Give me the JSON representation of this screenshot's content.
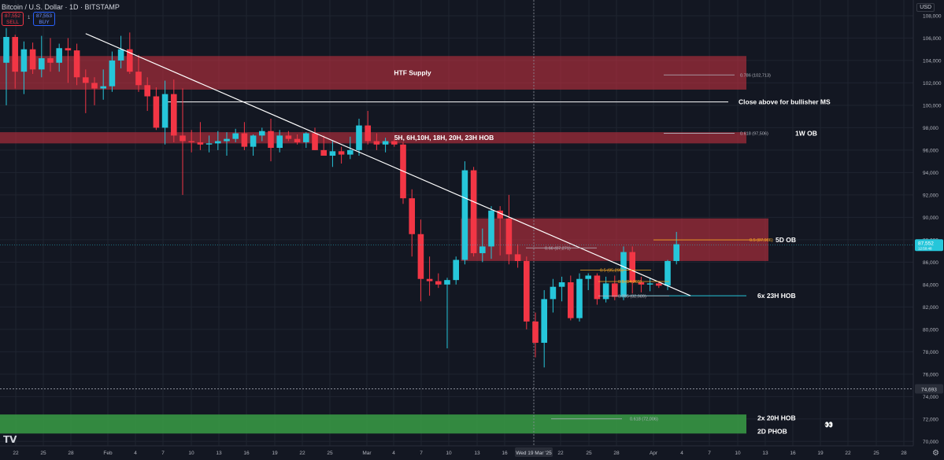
{
  "header": {
    "symbol_title": "Bitcoin / U.S. Dollar · 1D · BITSTAMP",
    "sell_price": "87,552",
    "sell_label": "SELL",
    "buy_price": "87,553",
    "buy_label": "BUY",
    "spread": "1",
    "currency": "USD"
  },
  "crosshair": {
    "date_label": "Wed 19 Mar '25",
    "price_label": "74,693"
  },
  "current_price": {
    "value": 87552,
    "label": "87,552",
    "sub": "12:50:48"
  },
  "icons": {
    "logo": "tradingview-logo-icon",
    "settings": "gear-icon",
    "eyes": "eyes-emoji-icon"
  },
  "colors": {
    "background": "#131722",
    "up": "#26c6da",
    "down": "#f23645",
    "supply_zone": "#c2303f",
    "demand_zone": "#3a9d45",
    "fib_line": "#f5a623",
    "grid": "#1f2430"
  },
  "chart_data": {
    "type": "candlestick",
    "symbol": "Bitcoin / U.S. Dollar",
    "timeframe": "1D",
    "exchange": "BITSTAMP",
    "x_ticks": [
      "22",
      "25",
      "28",
      "Feb",
      "4",
      "7",
      "10",
      "13",
      "16",
      "19",
      "22",
      "25",
      "Mar",
      "4",
      "7",
      "10",
      "13",
      "16",
      "Wed 19 Mar '25",
      "22",
      "25",
      "28",
      "Apr",
      "4",
      "7",
      "10",
      "13",
      "16",
      "19",
      "22",
      "25",
      "28"
    ],
    "y_ticks": [
      "108,000",
      "106,000",
      "104,000",
      "102,000",
      "100,000",
      "98,000",
      "96,000",
      "94,000",
      "92,000",
      "90,000",
      "88,000",
      "86,000",
      "84,000",
      "82,000",
      "80,000",
      "78,000",
      "76,000",
      "74,000",
      "72,000",
      "70,000"
    ],
    "ylim": [
      69600,
      109400
    ],
    "candles": [
      {
        "o": 103800,
        "h": 106900,
        "l": 100000,
        "c": 106100
      },
      {
        "o": 106100,
        "h": 106300,
        "l": 101500,
        "c": 103000
      },
      {
        "o": 103000,
        "h": 105700,
        "l": 101000,
        "c": 105000
      },
      {
        "o": 105000,
        "h": 105600,
        "l": 102800,
        "c": 103200
      },
      {
        "o": 103200,
        "h": 106200,
        "l": 102500,
        "c": 104200
      },
      {
        "o": 104200,
        "h": 106000,
        "l": 103000,
        "c": 103800
      },
      {
        "o": 103800,
        "h": 105500,
        "l": 103000,
        "c": 105100
      },
      {
        "o": 105100,
        "h": 106000,
        "l": 102000,
        "c": 104900
      },
      {
        "o": 104900,
        "h": 105500,
        "l": 101800,
        "c": 102500
      },
      {
        "o": 102500,
        "h": 103200,
        "l": 99300,
        "c": 102000
      },
      {
        "o": 102000,
        "h": 102500,
        "l": 100000,
        "c": 101500
      },
      {
        "o": 101500,
        "h": 103200,
        "l": 100500,
        "c": 101700
      },
      {
        "o": 101700,
        "h": 104800,
        "l": 101200,
        "c": 104000
      },
      {
        "o": 104000,
        "h": 106200,
        "l": 103300,
        "c": 105000
      },
      {
        "o": 105000,
        "h": 106500,
        "l": 102800,
        "c": 103000
      },
      {
        "o": 103000,
        "h": 104500,
        "l": 101200,
        "c": 101800
      },
      {
        "o": 101800,
        "h": 102500,
        "l": 99500,
        "c": 100800
      },
      {
        "o": 100800,
        "h": 101600,
        "l": 97800,
        "c": 98000
      },
      {
        "o": 98000,
        "h": 102200,
        "l": 96500,
        "c": 101000
      },
      {
        "o": 101000,
        "h": 102300,
        "l": 96700,
        "c": 97300
      },
      {
        "o": 97300,
        "h": 101500,
        "l": 92000,
        "c": 96800
      },
      {
        "o": 96800,
        "h": 97800,
        "l": 95800,
        "c": 96700
      },
      {
        "o": 96700,
        "h": 98500,
        "l": 96000,
        "c": 96500
      },
      {
        "o": 96500,
        "h": 97300,
        "l": 95800,
        "c": 96600
      },
      {
        "o": 96600,
        "h": 97700,
        "l": 96000,
        "c": 96800
      },
      {
        "o": 96800,
        "h": 97600,
        "l": 95500,
        "c": 97000
      },
      {
        "o": 97000,
        "h": 97900,
        "l": 96700,
        "c": 97500
      },
      {
        "o": 97500,
        "h": 98500,
        "l": 96000,
        "c": 96300
      },
      {
        "o": 96300,
        "h": 97400,
        "l": 95500,
        "c": 97300
      },
      {
        "o": 97300,
        "h": 98000,
        "l": 96800,
        "c": 97700
      },
      {
        "o": 97700,
        "h": 98800,
        "l": 95000,
        "c": 96200
      },
      {
        "o": 96200,
        "h": 97800,
        "l": 95800,
        "c": 97300
      },
      {
        "o": 97300,
        "h": 97700,
        "l": 96800,
        "c": 97000
      },
      {
        "o": 97000,
        "h": 97400,
        "l": 96500,
        "c": 96700
      },
      {
        "o": 96700,
        "h": 97600,
        "l": 96200,
        "c": 97500
      },
      {
        "o": 97500,
        "h": 98000,
        "l": 96000,
        "c": 96000
      },
      {
        "o": 96000,
        "h": 97300,
        "l": 95500,
        "c": 95500
      },
      {
        "o": 95500,
        "h": 96800,
        "l": 94500,
        "c": 95900
      },
      {
        "o": 95900,
        "h": 96300,
        "l": 94800,
        "c": 95600
      },
      {
        "o": 95600,
        "h": 97200,
        "l": 95200,
        "c": 96000
      },
      {
        "o": 96000,
        "h": 98800,
        "l": 95500,
        "c": 98200
      },
      {
        "o": 98200,
        "h": 99500,
        "l": 96500,
        "c": 96800
      },
      {
        "o": 96800,
        "h": 97500,
        "l": 96000,
        "c": 96500
      },
      {
        "o": 96500,
        "h": 97100,
        "l": 95800,
        "c": 96800
      },
      {
        "o": 96800,
        "h": 97000,
        "l": 96300,
        "c": 96500
      },
      {
        "o": 96500,
        "h": 96700,
        "l": 91200,
        "c": 91700
      },
      {
        "o": 91700,
        "h": 92500,
        "l": 86500,
        "c": 88500
      },
      {
        "o": 88500,
        "h": 89800,
        "l": 82500,
        "c": 84500
      },
      {
        "o": 84500,
        "h": 86500,
        "l": 83000,
        "c": 84300
      },
      {
        "o": 84300,
        "h": 85000,
        "l": 83700,
        "c": 84000
      },
      {
        "o": 84000,
        "h": 84600,
        "l": 78300,
        "c": 84400
      },
      {
        "o": 84400,
        "h": 86500,
        "l": 84000,
        "c": 86200
      },
      {
        "o": 86200,
        "h": 95000,
        "l": 85800,
        "c": 94200
      },
      {
        "o": 94200,
        "h": 94500,
        "l": 86500,
        "c": 86800
      },
      {
        "o": 86800,
        "h": 89000,
        "l": 86000,
        "c": 87400
      },
      {
        "o": 87400,
        "h": 91000,
        "l": 86300,
        "c": 90600
      },
      {
        "o": 90600,
        "h": 91000,
        "l": 86600,
        "c": 89900
      },
      {
        "o": 89900,
        "h": 92000,
        "l": 85800,
        "c": 86700
      },
      {
        "o": 86700,
        "h": 87600,
        "l": 85500,
        "c": 86100
      },
      {
        "o": 86100,
        "h": 86500,
        "l": 80000,
        "c": 80700
      },
      {
        "o": 80700,
        "h": 81500,
        "l": 77500,
        "c": 78800
      },
      {
        "o": 78800,
        "h": 83500,
        "l": 76600,
        "c": 82700
      },
      {
        "o": 82700,
        "h": 84500,
        "l": 81500,
        "c": 83800
      },
      {
        "o": 83800,
        "h": 84700,
        "l": 82500,
        "c": 84200
      },
      {
        "o": 84200,
        "h": 84800,
        "l": 80800,
        "c": 81000
      },
      {
        "o": 81000,
        "h": 85000,
        "l": 80700,
        "c": 84500
      },
      {
        "o": 84500,
        "h": 85000,
        "l": 83500,
        "c": 84800
      },
      {
        "o": 84800,
        "h": 85000,
        "l": 82200,
        "c": 82700
      },
      {
        "o": 82700,
        "h": 84700,
        "l": 82400,
        "c": 84100
      },
      {
        "o": 84100,
        "h": 84800,
        "l": 82600,
        "c": 82900
      },
      {
        "o": 82900,
        "h": 87400,
        "l": 82600,
        "c": 86900
      },
      {
        "o": 86900,
        "h": 87400,
        "l": 83200,
        "c": 84200
      },
      {
        "o": 84200,
        "h": 84700,
        "l": 83300,
        "c": 84000
      },
      {
        "o": 84000,
        "h": 84600,
        "l": 83400,
        "c": 84100
      },
      {
        "o": 84100,
        "h": 84200,
        "l": 83700,
        "c": 83900
      },
      {
        "o": 83900,
        "h": 86200,
        "l": 83500,
        "c": 86100
      },
      {
        "o": 86100,
        "h": 88700,
        "l": 85800,
        "c": 87600
      }
    ],
    "zones": [
      {
        "kind": "supply",
        "label": "HTF Supply",
        "top": 104400,
        "bottom": 101400,
        "width": "full"
      },
      {
        "kind": "supply",
        "label": "5H, 6H,10H, 18H, 20H, 23H HOB",
        "top": 97600,
        "bottom": 96600,
        "width": "full"
      },
      {
        "kind": "supply",
        "label": "",
        "top": 89900,
        "bottom": 86100,
        "width": "partial"
      },
      {
        "kind": "demand",
        "label": "",
        "top": 72400,
        "bottom": 70700,
        "width": "full"
      }
    ],
    "right_labels": [
      {
        "text": "1W OB",
        "price": 97500
      },
      {
        "text": "Close above for bullisher MS",
        "price": 100300
      },
      {
        "text": "5D OB",
        "price": 88000
      },
      {
        "text": "6x 23H HOB",
        "price": 83000
      },
      {
        "text": "2x 20H HOB",
        "price": 72100
      },
      {
        "text": "2D PHOB",
        "price": 70900
      }
    ],
    "fib_labels": [
      {
        "text": "0.786 (102,713)",
        "price": 102713,
        "color": "#b2b5be"
      },
      {
        "text": "0.618 (97,506)",
        "price": 97506,
        "color": "#b2b5be"
      },
      {
        "text": "0.5 (87,986)",
        "price": 87986,
        "color": "#f5a623"
      },
      {
        "text": "0.66 (87,271)",
        "price": 87271,
        "color": "#b2b5be"
      },
      {
        "text": "0.5 (85,295)",
        "price": 85295,
        "color": "#f5a623"
      },
      {
        "text": "0.5 (84,269)",
        "price": 84269,
        "color": "#f5a623"
      },
      {
        "text": "0.705 (82,989)",
        "price": 82989,
        "color": "#b2b5be"
      },
      {
        "text": "0.618 (72,006)",
        "price": 72006,
        "color": "#b2b5be"
      }
    ],
    "horizontal_lines": [
      {
        "price": 100300,
        "color": "#ffffff",
        "name": "bullish-ms-line"
      },
      {
        "price": 83000,
        "color": "#26c6da",
        "name": "hob-support-line"
      },
      {
        "price": 74693,
        "color": "#8a8e99",
        "name": "crosshair-price-line"
      }
    ],
    "trendline": {
      "from": {
        "candle": 9,
        "price": 106400
      },
      "to": {
        "candle": "end",
        "price": 83000
      }
    },
    "grid": true
  }
}
